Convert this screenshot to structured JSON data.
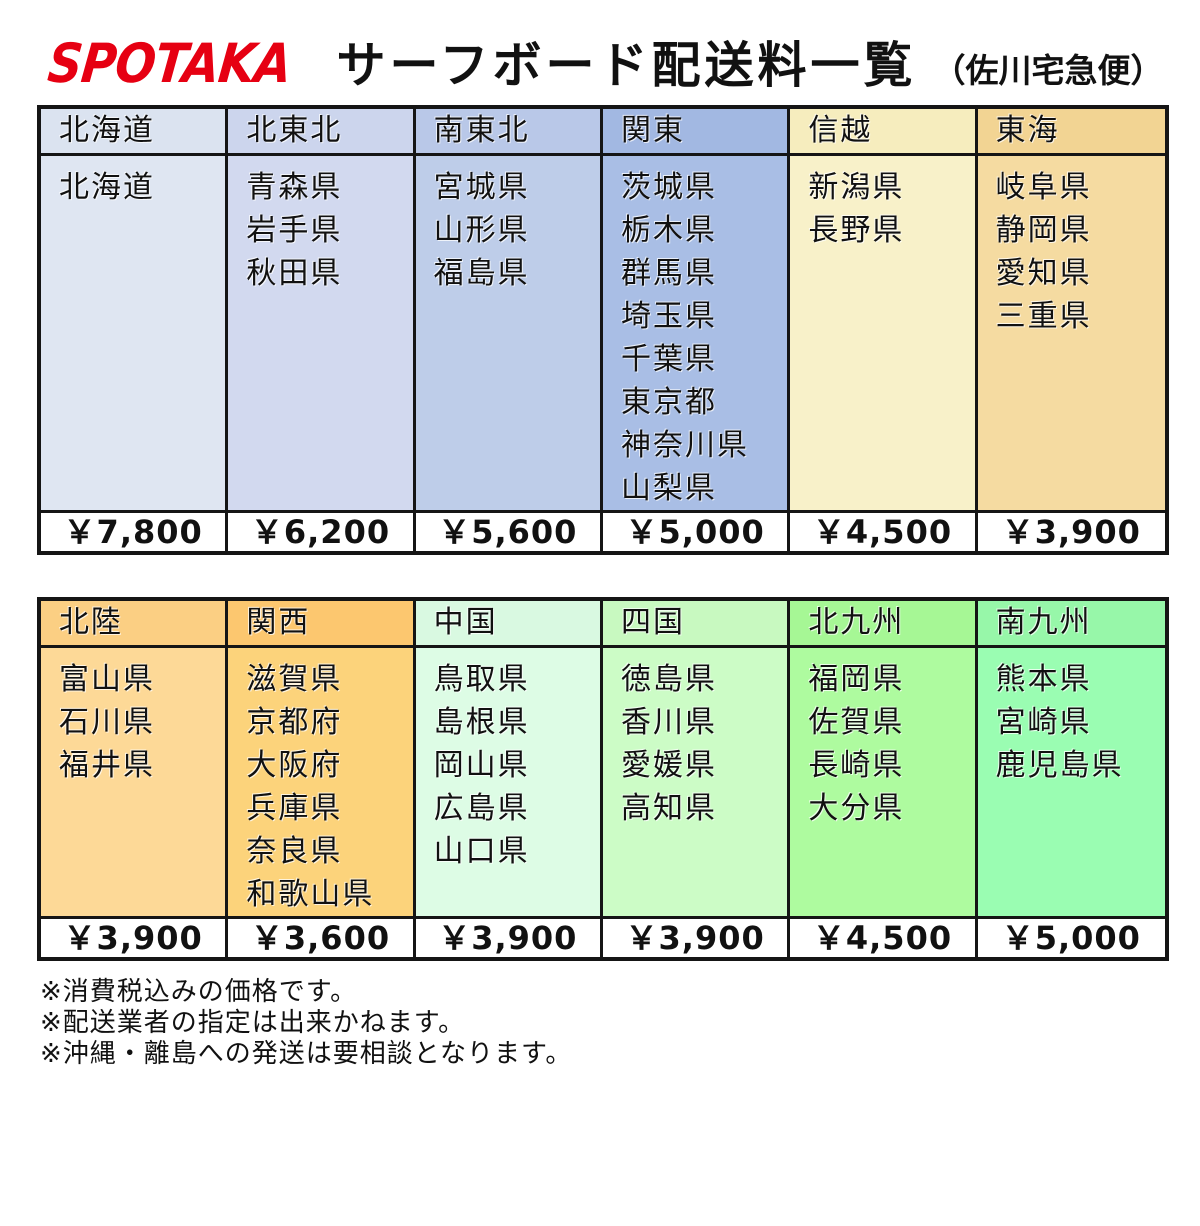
{
  "title": {
    "brand": "SPOTAKA",
    "brand_color": "#e60012",
    "main": "サーフボード配送料一覧",
    "sub": "（佐川宅急便）"
  },
  "tables": [
    {
      "columns": [
        {
          "region": "北海道",
          "prefectures": [
            "北海道"
          ],
          "price": "￥7,800",
          "header_bg": "#dbe3f0",
          "body_bg": "#dfe6f2"
        },
        {
          "region": "北東北",
          "prefectures": [
            "青森県",
            "岩手県",
            "秋田県"
          ],
          "price": "￥6,200",
          "header_bg": "#ccd5ed",
          "body_bg": "#d2d9ef"
        },
        {
          "region": "南東北",
          "prefectures": [
            "宮城県",
            "山形県",
            "福島県"
          ],
          "price": "￥5,600",
          "header_bg": "#b9c8e8",
          "body_bg": "#becde9"
        },
        {
          "region": "関東",
          "prefectures": [
            "茨城県",
            "栃木県",
            "群馬県",
            "埼玉県",
            "千葉県",
            "東京都",
            "神奈川県",
            "山梨県"
          ],
          "price": "￥5,000",
          "header_bg": "#a2b8e2",
          "body_bg": "#a9bee5"
        },
        {
          "region": "信越",
          "prefectures": [
            "新潟県",
            "長野県"
          ],
          "price": "￥4,500",
          "header_bg": "#f6edbe",
          "body_bg": "#f8f1c9"
        },
        {
          "region": "東海",
          "prefectures": [
            "岐阜県",
            "静岡県",
            "愛知県",
            "三重県"
          ],
          "price": "￥3,900",
          "header_bg": "#f2d493",
          "body_bg": "#f5dba1"
        }
      ]
    },
    {
      "columns": [
        {
          "region": "北陸",
          "prefectures": [
            "富山県",
            "石川県",
            "福井県"
          ],
          "price": "￥3,900",
          "header_bg": "#fbcf83",
          "body_bg": "#fdd997"
        },
        {
          "region": "関西",
          "prefectures": [
            "滋賀県",
            "京都府",
            "大阪府",
            "兵庫県",
            "奈良県",
            "和歌山県"
          ],
          "price": "￥3,600",
          "header_bg": "#fcc76f",
          "body_bg": "#fcd37b"
        },
        {
          "region": "中国",
          "prefectures": [
            "鳥取県",
            "島根県",
            "岡山県",
            "広島県",
            "山口県"
          ],
          "price": "￥3,900",
          "header_bg": "#d9f9e1",
          "body_bg": "#ddfce5"
        },
        {
          "region": "四国",
          "prefectures": [
            "徳島県",
            "香川県",
            "愛媛県",
            "高知県"
          ],
          "price": "￥3,900",
          "header_bg": "#c8f9c0",
          "body_bg": "#ccfcc6"
        },
        {
          "region": "北九州",
          "prefectures": [
            "福岡県",
            "佐賀県",
            "長崎県",
            "大分県"
          ],
          "price": "￥4,500",
          "header_bg": "#a6f795",
          "body_bg": "#aefb9f"
        },
        {
          "region": "南九州",
          "prefectures": [
            "熊本県",
            "宮崎県",
            "鹿児島県"
          ],
          "price": "￥5,000",
          "header_bg": "#97f7a9",
          "body_bg": "#9afdb2"
        }
      ]
    }
  ],
  "notes": [
    "※消費税込みの価格です。",
    "※配送業者の指定は出来かねます。",
    "※沖縄・離島への発送は要相談となります。"
  ]
}
